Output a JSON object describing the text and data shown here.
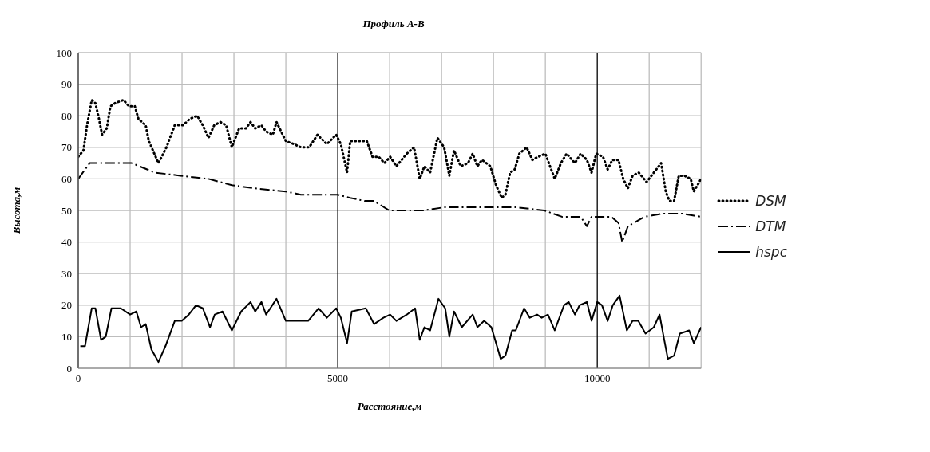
{
  "chart_data": {
    "type": "line",
    "title": "Профиль А-В",
    "xlabel": "Расстояние,м",
    "ylabel": "Высота,м",
    "xlim": [
      0,
      12000
    ],
    "ylim": [
      0,
      100
    ],
    "xticks": [
      0,
      {
        "value": 1000,
        "label": null
      },
      {
        "value": 2000,
        "label": null
      },
      {
        "value": 3000,
        "label": null
      },
      {
        "value": 4000,
        "label": null
      },
      5000,
      {
        "value": 6000,
        "label": null
      },
      {
        "value": 7000,
        "label": null
      },
      {
        "value": 8000,
        "label": null
      },
      {
        "value": 9000,
        "label": null
      },
      10000,
      {
        "value": 11000,
        "label": null
      },
      {
        "value": 12000,
        "label": null
      }
    ],
    "yticks": [
      0,
      10,
      20,
      30,
      40,
      50,
      60,
      70,
      80,
      90,
      100
    ],
    "grid": true,
    "legend": "right",
    "marker": "none",
    "series": [
      {
        "name": "DSM",
        "color": "#000000",
        "line_style": "dotted",
        "x": [
          0,
          100,
          170,
          260,
          330,
          400,
          460,
          550,
          620,
          710,
          870,
          980,
          1090,
          1160,
          1300,
          1360,
          1545,
          1700,
          1860,
          2020,
          2150,
          2290,
          2400,
          2510,
          2620,
          2740,
          2850,
          2960,
          3100,
          3230,
          3320,
          3410,
          3530,
          3620,
          3750,
          3820,
          3910,
          4000,
          4160,
          4290,
          4450,
          4610,
          4790,
          4970,
          5060,
          5180,
          5240,
          5430,
          5560,
          5670,
          5790,
          5900,
          6010,
          6130,
          6330,
          6470,
          6580,
          6670,
          6780,
          6920,
          7050,
          7150,
          7240,
          7370,
          7510,
          7600,
          7690,
          7780,
          7940,
          8050,
          8160,
          8230,
          8320,
          8410,
          8500,
          8640,
          8750,
          8860,
          9000,
          9090,
          9180,
          9300,
          9410,
          9570,
          9680,
          9800,
          9890,
          9980,
          10110,
          10200,
          10290,
          10410,
          10500,
          10590,
          10680,
          10800,
          10950,
          11090,
          11230,
          11320,
          11390,
          11480,
          11570,
          11680,
          11800,
          11860,
          12000
        ],
        "values": [
          67,
          69,
          77,
          85,
          84,
          79,
          74,
          76,
          83,
          84,
          85,
          83,
          83,
          79,
          77,
          72,
          65,
          70,
          77,
          77,
          79,
          80,
          77,
          73,
          77,
          78,
          77,
          70,
          76,
          76,
          78,
          76,
          77,
          75,
          74,
          78,
          75,
          72,
          71,
          70,
          70,
          74,
          71,
          74,
          71,
          62,
          72,
          72,
          72,
          67,
          67,
          65,
          67,
          64,
          68,
          70,
          60,
          64,
          62,
          73,
          70,
          61,
          69,
          64,
          65,
          68,
          64,
          66,
          64,
          58,
          54,
          55,
          62,
          63,
          68,
          70,
          66,
          67,
          68,
          64,
          60,
          65,
          68,
          65,
          68,
          66,
          62,
          68,
          67,
          63,
          66,
          66,
          60,
          57,
          61,
          62,
          59,
          62,
          65,
          56,
          53,
          53,
          61,
          61,
          60,
          56,
          60
        ]
      },
      {
        "name": "DTM",
        "color": "#000000",
        "line_style": "dashed",
        "x": [
          0,
          220,
          890,
          1030,
          1480,
          1970,
          2510,
          2960,
          3410,
          4000,
          4290,
          5000,
          5240,
          5520,
          5700,
          5990,
          6650,
          7050,
          7510,
          8160,
          8450,
          8980,
          9320,
          9680,
          9800,
          9890,
          10270,
          10410,
          10480,
          10590,
          10910,
          11270,
          11640,
          12000
        ],
        "values": [
          60,
          65,
          65,
          65,
          62,
          61,
          60,
          58,
          57,
          56,
          55,
          55,
          54,
          53,
          53,
          50,
          50,
          51,
          51,
          51,
          51,
          50,
          48,
          48,
          45,
          48,
          48,
          46,
          40,
          45,
          48,
          49,
          49,
          48
        ]
      },
      {
        "name": "hspc",
        "color": "#000000",
        "line_style": "solid",
        "x": [
          40,
          130,
          260,
          330,
          440,
          530,
          640,
          820,
          1000,
          1120,
          1210,
          1300,
          1410,
          1545,
          1680,
          1860,
          1995,
          2130,
          2270,
          2400,
          2540,
          2630,
          2780,
          2960,
          3140,
          3320,
          3410,
          3530,
          3620,
          3820,
          4000,
          4070,
          4230,
          4430,
          4630,
          4790,
          4970,
          5060,
          5180,
          5270,
          5540,
          5700,
          5880,
          6010,
          6130,
          6330,
          6490,
          6580,
          6670,
          6780,
          6940,
          7070,
          7150,
          7240,
          7390,
          7600,
          7690,
          7820,
          7960,
          8140,
          8230,
          8360,
          8430,
          8590,
          8700,
          8840,
          8930,
          9050,
          9180,
          9360,
          9450,
          9570,
          9660,
          9800,
          9890,
          10000,
          10090,
          10200,
          10300,
          10430,
          10570,
          10680,
          10790,
          10930,
          11090,
          11200,
          11290,
          11360,
          11480,
          11590,
          11770,
          11860,
          12000
        ],
        "values": [
          7,
          7,
          19,
          19,
          9,
          10,
          19,
          19,
          17,
          18,
          13,
          14,
          6,
          2,
          7,
          15,
          15,
          17,
          20,
          19,
          13,
          17,
          18,
          12,
          18,
          21,
          18,
          21,
          17,
          22,
          15,
          15,
          15,
          15,
          19,
          16,
          19,
          16,
          8,
          18,
          19,
          14,
          16,
          17,
          15,
          17,
          19,
          9,
          13,
          12,
          22,
          19,
          10,
          18,
          13,
          17,
          13,
          15,
          13,
          3,
          4,
          12,
          12,
          19,
          16,
          17,
          16,
          17,
          12,
          20,
          21,
          17,
          20,
          21,
          15,
          21,
          20,
          15,
          20,
          23,
          12,
          15,
          15,
          11,
          13,
          17,
          9,
          3,
          4,
          11,
          12,
          8,
          13
        ]
      }
    ]
  }
}
